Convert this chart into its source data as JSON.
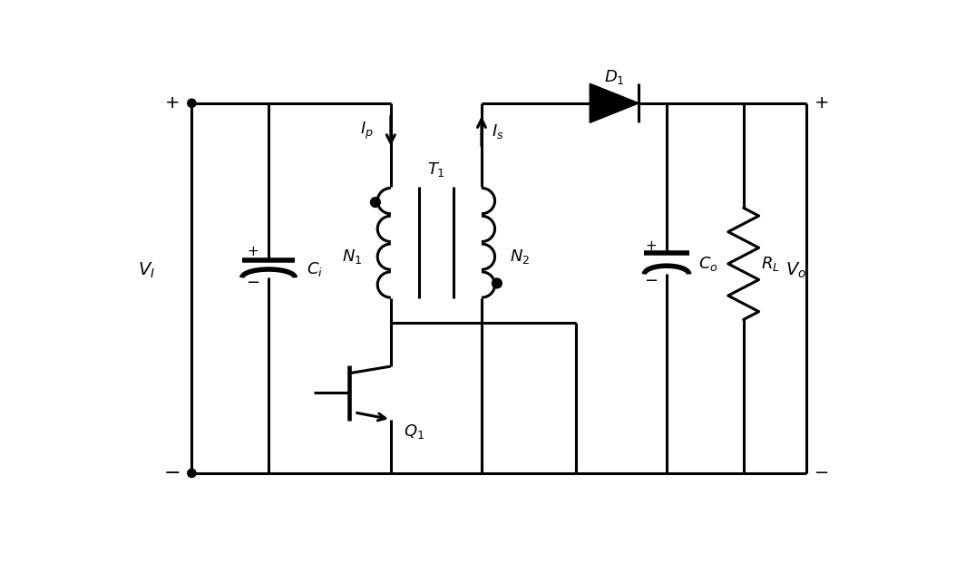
{
  "bg_color": "#ffffff",
  "line_color": "#000000",
  "line_width": 2.2,
  "fig_width": 10.54,
  "fig_height": 6.21
}
